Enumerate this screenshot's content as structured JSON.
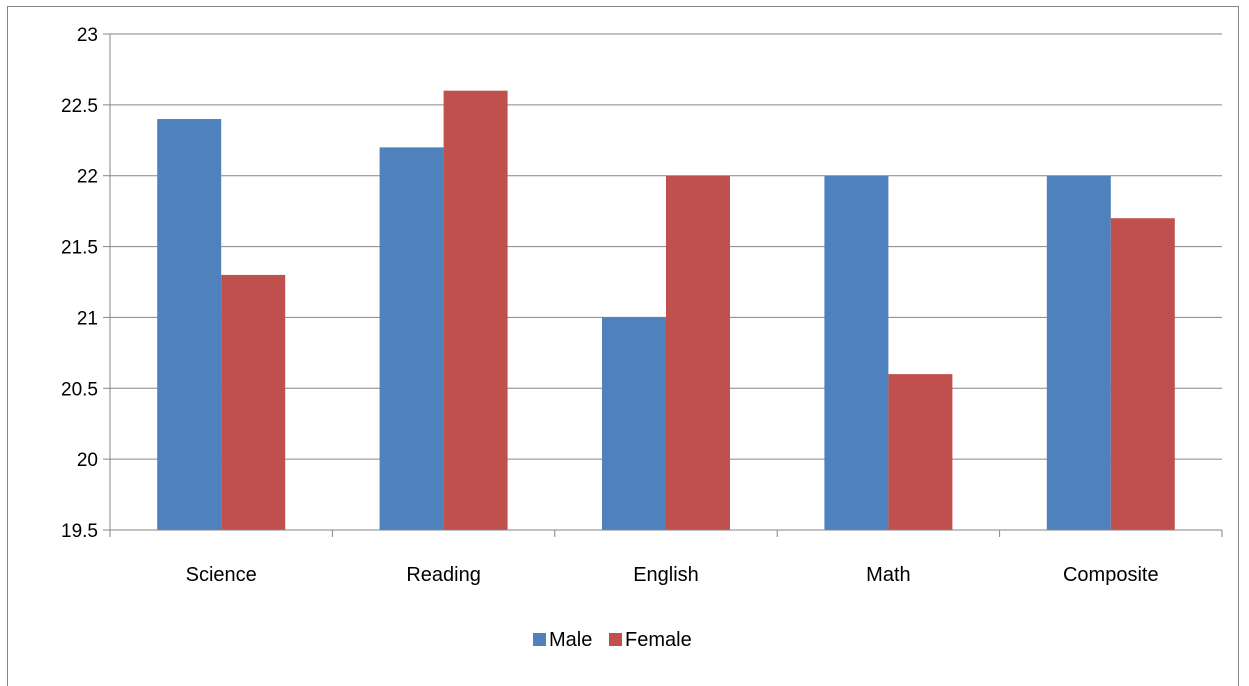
{
  "chart_data": {
    "type": "bar",
    "categories": [
      "Science",
      "Reading",
      "English",
      "Math",
      "Composite"
    ],
    "series": [
      {
        "name": "Male",
        "color": "#4F81BD",
        "values": [
          22.4,
          22.2,
          21.0,
          22.0,
          22.0
        ]
      },
      {
        "name": "Female",
        "color": "#C0504D",
        "values": [
          21.3,
          22.6,
          22.0,
          20.6,
          21.7
        ]
      }
    ],
    "title": "",
    "xlabel": "",
    "ylabel": "",
    "ylim": [
      19.5,
      23
    ],
    "y_ticks": [
      "19.5",
      "20",
      "20.5",
      "21",
      "21.5",
      "22",
      "22.5",
      "23"
    ],
    "grid": true,
    "legend_position": "bottom"
  }
}
